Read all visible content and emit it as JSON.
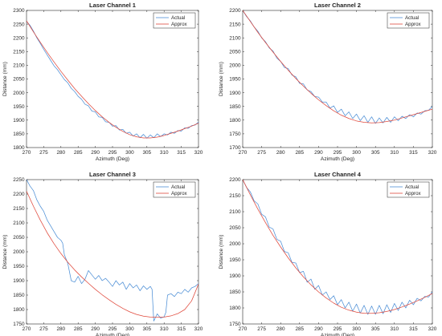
{
  "chart_data": [
    {
      "type": "line",
      "title": "Laser Channel 1",
      "xlabel": "Azimuth (Deg)",
      "ylabel": "Distance (mm)",
      "xlim": [
        270,
        320
      ],
      "ylim": [
        1800,
        2300
      ],
      "xticks": [
        270,
        275,
        280,
        285,
        290,
        295,
        300,
        305,
        310,
        315,
        320
      ],
      "yticks": [
        1800,
        1850,
        1900,
        1950,
        2000,
        2050,
        2100,
        2150,
        2200,
        2250,
        2300
      ],
      "legend_position": "top-right",
      "grid": false,
      "series": [
        {
          "name": "Actual",
          "color": "#4d8fd6",
          "x": [
            270,
            271,
            272,
            273,
            274,
            275,
            276,
            277,
            278,
            279,
            280,
            281,
            282,
            283,
            284,
            285,
            286,
            287,
            288,
            289,
            290,
            291,
            292,
            293,
            294,
            295,
            296,
            297,
            298,
            299,
            300,
            301,
            302,
            303,
            304,
            305,
            306,
            307,
            308,
            309,
            310,
            311,
            312,
            313,
            314,
            315,
            316,
            317,
            318,
            319,
            320
          ],
          "y": [
            2260,
            2246,
            2225,
            2200,
            2180,
            2158,
            2138,
            2118,
            2098,
            2084,
            2066,
            2048,
            2036,
            2016,
            2004,
            1987,
            1976,
            1958,
            1952,
            1933,
            1930,
            1912,
            1910,
            1894,
            1892,
            1878,
            1880,
            1864,
            1866,
            1852,
            1856,
            1842,
            1850,
            1836,
            1848,
            1834,
            1846,
            1836,
            1850,
            1840,
            1850,
            1846,
            1856,
            1852,
            1862,
            1860,
            1872,
            1870,
            1880,
            1882,
            1893
          ]
        },
        {
          "name": "Approx",
          "color": "#e0483b",
          "x": [
            270,
            272,
            274,
            276,
            278,
            280,
            282,
            284,
            286,
            288,
            290,
            292,
            294,
            296,
            298,
            300,
            302,
            304,
            306,
            308,
            310,
            312,
            314,
            316,
            318,
            320
          ],
          "y": [
            2262,
            2222,
            2184,
            2147,
            2112,
            2078,
            2046,
            2015,
            1987,
            1960,
            1935,
            1912,
            1892,
            1874,
            1859,
            1847,
            1839,
            1835,
            1835,
            1838,
            1844,
            1852,
            1860,
            1869,
            1878,
            1889
          ]
        }
      ]
    },
    {
      "type": "line",
      "title": "Laser Channel 2",
      "xlabel": "Azimuth (Deg)",
      "ylabel": "Distance (mm)",
      "xlim": [
        270,
        320
      ],
      "ylim": [
        1700,
        2200
      ],
      "xticks": [
        270,
        275,
        280,
        285,
        290,
        295,
        300,
        305,
        310,
        315,
        320
      ],
      "yticks": [
        1700,
        1750,
        1800,
        1850,
        1900,
        1950,
        2000,
        2050,
        2100,
        2150,
        2200
      ],
      "legend_position": "top-right",
      "grid": false,
      "series": [
        {
          "name": "Actual",
          "color": "#4d8fd6",
          "x": [
            270,
            271,
            272,
            273,
            274,
            275,
            276,
            277,
            278,
            279,
            280,
            281,
            282,
            283,
            284,
            285,
            286,
            287,
            288,
            289,
            290,
            291,
            292,
            293,
            294,
            295,
            296,
            297,
            298,
            299,
            300,
            301,
            302,
            303,
            304,
            305,
            306,
            307,
            308,
            309,
            310,
            311,
            312,
            313,
            314,
            315,
            316,
            317,
            318,
            319,
            320
          ],
          "y": [
            2200,
            2178,
            2162,
            2140,
            2124,
            2100,
            2086,
            2063,
            2052,
            2026,
            2014,
            1992,
            1988,
            1964,
            1958,
            1934,
            1932,
            1910,
            1904,
            1886,
            1884,
            1866,
            1866,
            1844,
            1852,
            1828,
            1840,
            1816,
            1830,
            1806,
            1822,
            1798,
            1816,
            1792,
            1812,
            1788,
            1808,
            1790,
            1810,
            1792,
            1812,
            1798,
            1814,
            1806,
            1820,
            1812,
            1826,
            1822,
            1834,
            1836,
            1850
          ]
        },
        {
          "name": "Approx",
          "color": "#e0483b",
          "x": [
            270,
            272,
            274,
            276,
            278,
            280,
            282,
            284,
            286,
            288,
            290,
            292,
            294,
            296,
            298,
            300,
            302,
            304,
            306,
            308,
            310,
            312,
            314,
            316,
            318,
            320
          ],
          "y": [
            2200,
            2160,
            2120,
            2083,
            2048,
            2014,
            1982,
            1952,
            1924,
            1898,
            1874,
            1853,
            1834,
            1818,
            1806,
            1797,
            1792,
            1790,
            1791,
            1795,
            1800,
            1808,
            1816,
            1824,
            1832,
            1840
          ]
        }
      ]
    },
    {
      "type": "line",
      "title": "Laser Channel 3",
      "xlabel": "Azimuth (Deg)",
      "ylabel": "Distance (mm)",
      "xlim": [
        270,
        320
      ],
      "ylim": [
        1750,
        2250
      ],
      "xticks": [
        270,
        275,
        280,
        285,
        290,
        295,
        300,
        305,
        310,
        315,
        320
      ],
      "yticks": [
        1750,
        1800,
        1850,
        1900,
        1950,
        2000,
        2050,
        2100,
        2150,
        2200,
        2250
      ],
      "legend_position": "top-right",
      "grid": false,
      "series": [
        {
          "name": "Actual",
          "color": "#4d8fd6",
          "x": [
            270,
            271,
            272,
            273,
            274,
            275,
            276,
            277,
            278,
            279,
            280,
            280.5,
            281,
            282,
            283,
            284,
            285,
            286,
            287,
            288,
            289,
            290,
            291,
            292,
            293,
            294,
            295,
            296,
            297,
            298,
            299,
            300,
            301,
            302,
            303,
            304,
            305,
            306,
            306.5,
            307,
            308,
            309,
            310,
            310.5,
            311,
            312,
            313,
            314,
            315,
            316,
            317,
            318,
            319,
            320
          ],
          "y": [
            2250,
            2228,
            2212,
            2180,
            2158,
            2140,
            2110,
            2090,
            2070,
            2050,
            2040,
            2030,
            1990,
            1960,
            1900,
            1895,
            1915,
            1890,
            1905,
            1935,
            1920,
            1905,
            1918,
            1900,
            1908,
            1895,
            1880,
            1900,
            1885,
            1895,
            1870,
            1890,
            1875,
            1885,
            1865,
            1882,
            1870,
            1880,
            1870,
            1760,
            1785,
            1770,
            1775,
            1790,
            1850,
            1855,
            1845,
            1860,
            1855,
            1870,
            1860,
            1875,
            1880,
            1890
          ]
        },
        {
          "name": "Approx",
          "color": "#e0483b",
          "x": [
            270,
            272,
            274,
            276,
            278,
            280,
            282,
            284,
            286,
            288,
            290,
            292,
            294,
            296,
            298,
            300,
            302,
            304,
            306,
            308,
            310,
            312,
            314,
            316,
            318,
            320
          ],
          "y": [
            2210,
            2158,
            2110,
            2066,
            2028,
            1994,
            1964,
            1937,
            1913,
            1891,
            1870,
            1851,
            1834,
            1818,
            1804,
            1792,
            1783,
            1777,
            1774,
            1773,
            1774,
            1778,
            1786,
            1800,
            1830,
            1888
          ]
        }
      ]
    },
    {
      "type": "line",
      "title": "Laser Channel 4",
      "xlabel": "Azimuth (Deg)",
      "ylabel": "Distance (mm)",
      "xlim": [
        270,
        320
      ],
      "ylim": [
        1750,
        2200
      ],
      "xticks": [
        270,
        275,
        280,
        285,
        290,
        295,
        300,
        305,
        310,
        315,
        320
      ],
      "yticks": [
        1750,
        1800,
        1850,
        1900,
        1950,
        2000,
        2050,
        2100,
        2150,
        2200
      ],
      "legend_position": "top-right",
      "grid": false,
      "series": [
        {
          "name": "Actual",
          "color": "#4d8fd6",
          "x": [
            270,
            271,
            272,
            273,
            274,
            275,
            276,
            277,
            278,
            279,
            280,
            281,
            282,
            283,
            284,
            285,
            286,
            287,
            288,
            289,
            290,
            291,
            292,
            293,
            294,
            295,
            296,
            297,
            298,
            299,
            300,
            301,
            302,
            303,
            304,
            305,
            306,
            307,
            308,
            309,
            310,
            311,
            312,
            313,
            314,
            315,
            316,
            317,
            318,
            319,
            320
          ],
          "y": [
            2200,
            2176,
            2162,
            2134,
            2124,
            2092,
            2084,
            2052,
            2046,
            2014,
            2008,
            1976,
            1972,
            1942,
            1940,
            1910,
            1914,
            1880,
            1890,
            1858,
            1870,
            1840,
            1850,
            1826,
            1838,
            1810,
            1826,
            1800,
            1818,
            1790,
            1812,
            1784,
            1808,
            1780,
            1806,
            1780,
            1808,
            1782,
            1810,
            1786,
            1814,
            1792,
            1818,
            1800,
            1824,
            1810,
            1830,
            1822,
            1836,
            1834,
            1850
          ]
        },
        {
          "name": "Approx",
          "color": "#e0483b",
          "x": [
            270,
            272,
            274,
            276,
            278,
            280,
            282,
            284,
            286,
            288,
            290,
            292,
            294,
            296,
            298,
            300,
            302,
            304,
            306,
            308,
            310,
            312,
            314,
            316,
            318,
            320
          ],
          "y": [
            2200,
            2153,
            2108,
            2066,
            2026,
            1990,
            1956,
            1925,
            1897,
            1872,
            1850,
            1831,
            1815,
            1802,
            1793,
            1787,
            1783,
            1783,
            1785,
            1789,
            1795,
            1803,
            1812,
            1822,
            1833,
            1845
          ]
        }
      ]
    }
  ]
}
